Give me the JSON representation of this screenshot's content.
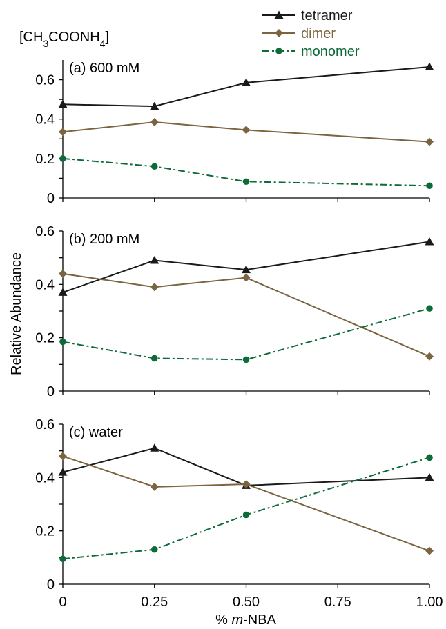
{
  "chart_data": {
    "type": "line",
    "header": {
      "formula_main": "[CH",
      "formula_sub1": "3",
      "formula_mid": "COONH",
      "formula_sub2": "4",
      "formula_end": "]"
    },
    "x": [
      0,
      0.25,
      0.5,
      1.0
    ],
    "xticks": [
      "0",
      "0.25",
      "0.50",
      "0.75",
      "1.00"
    ],
    "xtick_values": [
      0,
      0.25,
      0.5,
      0.75,
      1.0
    ],
    "xlim": [
      0,
      1.0
    ],
    "xlabel_prefix": "% ",
    "xlabel_italic": "m",
    "xlabel_suffix": "-NBA",
    "ylabel": "Relative Abundance",
    "colors": {
      "tetramer": "#1a1a1a",
      "dimer": "#7b6440",
      "monomer": "#0d6b3a"
    },
    "legend": [
      {
        "name": "tetramer",
        "marker": "triangle",
        "dash": "solid"
      },
      {
        "name": "dimer",
        "marker": "diamond",
        "dash": "solid"
      },
      {
        "name": "monomer",
        "marker": "circle",
        "dash": "dashdot"
      }
    ],
    "panels": [
      {
        "label": "(a) 600 mM",
        "ylim": [
          0,
          0.7
        ],
        "yticks": [
          "0",
          "0.2",
          "0.4",
          "0.6"
        ],
        "ytick_values": [
          0,
          0.2,
          0.4,
          0.6
        ],
        "series": [
          {
            "name": "tetramer",
            "values": [
              0.475,
              0.465,
              0.585,
              0.665
            ]
          },
          {
            "name": "dimer",
            "values": [
              0.335,
              0.385,
              0.345,
              0.285
            ]
          },
          {
            "name": "monomer",
            "values": [
              0.2,
              0.16,
              0.083,
              0.062
            ]
          }
        ]
      },
      {
        "label": "(b) 200 mM",
        "ylim": [
          0,
          0.6
        ],
        "yticks": [
          "0",
          "0.2",
          "0.4",
          "0.6"
        ],
        "ytick_values": [
          0,
          0.2,
          0.4,
          0.6
        ],
        "series": [
          {
            "name": "tetramer",
            "values": [
              0.37,
              0.49,
              0.455,
              0.56
            ]
          },
          {
            "name": "dimer",
            "values": [
              0.44,
              0.39,
              0.425,
              0.13
            ]
          },
          {
            "name": "monomer",
            "values": [
              0.185,
              0.123,
              0.118,
              0.31
            ]
          }
        ]
      },
      {
        "label": "(c) water",
        "ylim": [
          0,
          0.6
        ],
        "yticks": [
          "0",
          "0.2",
          "0.4",
          "0.6"
        ],
        "ytick_values": [
          0,
          0.2,
          0.4,
          0.6
        ],
        "series": [
          {
            "name": "tetramer",
            "values": [
              0.42,
              0.51,
              0.37,
              0.4
            ]
          },
          {
            "name": "dimer",
            "values": [
              0.48,
              0.365,
              0.375,
              0.125
            ]
          },
          {
            "name": "monomer",
            "values": [
              0.095,
              0.13,
              0.26,
              0.475
            ]
          }
        ]
      }
    ]
  }
}
